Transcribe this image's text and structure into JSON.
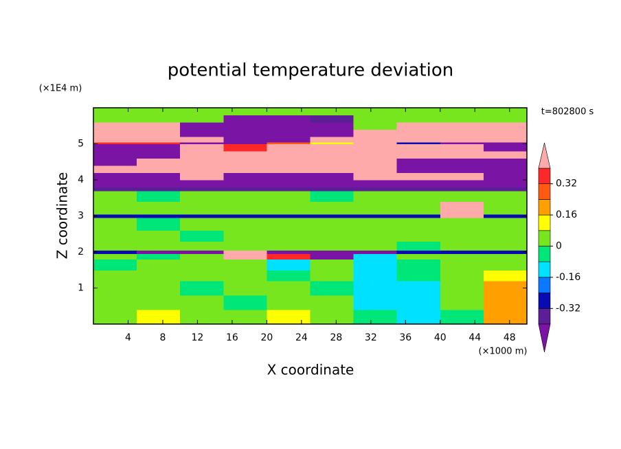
{
  "chart_data": {
    "type": "contour",
    "title": "potential temperature deviation",
    "xlabel": "X coordinate",
    "ylabel": "Z coordinate",
    "x_unit": "(×1000 m)",
    "y_unit": "(×1E4 m)",
    "annotation": "t=802800 s",
    "xlim": [
      0,
      50
    ],
    "ylim": [
      0,
      6
    ],
    "xticks": [
      4,
      8,
      12,
      16,
      20,
      24,
      28,
      32,
      36,
      40,
      44,
      48
    ],
    "yticks": [
      1,
      2,
      3,
      4,
      5
    ],
    "levels": [
      -0.4,
      -0.32,
      -0.24,
      -0.16,
      -0.08,
      0,
      0.08,
      0.16,
      0.24,
      0.32,
      0.4
    ],
    "colors": [
      "#7a14a5",
      "#5a1e96",
      "#0a0ab4",
      "#0a78ff",
      "#00e1ff",
      "#00e678",
      "#78e61e",
      "#ffff00",
      "#ffa000",
      "#ff5a14",
      "#ff2828",
      "#ffaaaa"
    ],
    "cbticks": [
      0.32,
      0.16,
      0,
      -0.16,
      -0.32
    ],
    "xedges": [
      0,
      5,
      10,
      15,
      20,
      25,
      30,
      35,
      40,
      45,
      50
    ],
    "yedges": [
      0,
      0.4,
      0.8,
      1.2,
      1.5,
      1.8,
      1.95,
      2.05,
      2.3,
      2.6,
      2.95,
      3.05,
      3.4,
      3.7,
      3.8,
      4.0,
      4.2,
      4.4,
      4.6,
      4.8,
      5.0,
      5.05,
      5.2,
      5.4,
      5.6,
      5.8,
      6.0
    ],
    "z": [
      [
        0.04,
        0.12,
        0.04,
        0.04,
        0.12,
        0.04,
        -0.04,
        -0.12,
        -0.04,
        0.2
      ],
      [
        0.04,
        0.04,
        0.04,
        -0.04,
        0.04,
        0.04,
        -0.12,
        -0.12,
        0.04,
        0.2
      ],
      [
        0.04,
        0.04,
        -0.04,
        0.04,
        0.04,
        -0.04,
        -0.12,
        -0.12,
        0.04,
        0.2
      ],
      [
        0.04,
        0.04,
        0.04,
        0.04,
        -0.04,
        0.04,
        -0.12,
        -0.04,
        0.04,
        0.12
      ],
      [
        -0.04,
        0.04,
        0.04,
        0.04,
        -0.12,
        0.04,
        -0.12,
        -0.04,
        0.04,
        0.04
      ],
      [
        0.04,
        -0.04,
        0.04,
        0.5,
        0.36,
        -0.5,
        -0.12,
        0.04,
        0.04,
        0.04
      ],
      [
        -0.28,
        -0.5,
        -0.5,
        0.5,
        -0.5,
        -0.5,
        -0.5,
        -0.28,
        -0.28,
        -0.28
      ],
      [
        0.04,
        0.04,
        0.04,
        0.04,
        0.04,
        0.04,
        0.04,
        -0.04,
        0.04,
        0.04
      ],
      [
        0.04,
        0.04,
        -0.04,
        0.04,
        0.04,
        0.04,
        0.04,
        0.04,
        0.04,
        0.04
      ],
      [
        0.04,
        -0.04,
        0.04,
        0.04,
        0.04,
        0.04,
        0.04,
        0.04,
        0.04,
        0.04
      ],
      [
        -0.28,
        -0.28,
        -0.28,
        -0.28,
        -0.28,
        -0.28,
        -0.28,
        -0.28,
        0.5,
        -0.28
      ],
      [
        0.04,
        0.04,
        0.04,
        0.04,
        0.04,
        0.04,
        0.04,
        0.04,
        0.5,
        0.04
      ],
      [
        0.04,
        -0.04,
        0.04,
        0.04,
        0.04,
        -0.04,
        0.04,
        0.04,
        0.04,
        0.04
      ],
      [
        -0.36,
        -0.36,
        -0.36,
        -0.36,
        -0.36,
        -0.36,
        -0.36,
        -0.36,
        -0.36,
        -0.36
      ],
      [
        -0.5,
        -0.5,
        -0.5,
        -0.5,
        -0.5,
        -0.5,
        -0.5,
        -0.5,
        -0.5,
        -0.5
      ],
      [
        -0.5,
        -0.5,
        0.5,
        -0.5,
        -0.5,
        -0.5,
        0.5,
        0.5,
        0.5,
        -0.5
      ],
      [
        0.5,
        0.5,
        0.5,
        0.5,
        0.5,
        0.5,
        0.5,
        -0.5,
        -0.5,
        -0.5
      ],
      [
        -0.5,
        0.5,
        0.5,
        0.5,
        0.5,
        0.5,
        0.5,
        -0.5,
        -0.5,
        -0.5
      ],
      [
        -0.5,
        -0.5,
        0.5,
        0.5,
        0.5,
        0.5,
        0.5,
        0.5,
        0.5,
        0.5
      ],
      [
        -0.5,
        -0.5,
        0.5,
        0.36,
        0.5,
        0.5,
        0.5,
        0.5,
        0.5,
        -0.5
      ],
      [
        0.36,
        0.36,
        -0.5,
        -0.5,
        0.28,
        0.12,
        0.5,
        -0.28,
        -0.5,
        -0.5
      ],
      [
        0.5,
        0.5,
        0.5,
        -0.5,
        -0.5,
        0.5,
        0.5,
        0.5,
        0.5,
        0.5
      ],
      [
        0.5,
        0.5,
        -0.5,
        -0.5,
        -0.5,
        -0.5,
        0.5,
        0.5,
        0.5,
        0.5
      ],
      [
        0.5,
        0.5,
        -0.5,
        -0.5,
        -0.5,
        -0.5,
        0.04,
        0.5,
        0.5,
        0.5
      ],
      [
        0.04,
        0.04,
        0.04,
        -0.5,
        -0.5,
        -0.36,
        0.04,
        0.04,
        0.04,
        0.04
      ],
      [
        0.04,
        0.04,
        0.04,
        0.04,
        0.04,
        0.04,
        0.04,
        0.04,
        0.04,
        0.04
      ]
    ]
  }
}
